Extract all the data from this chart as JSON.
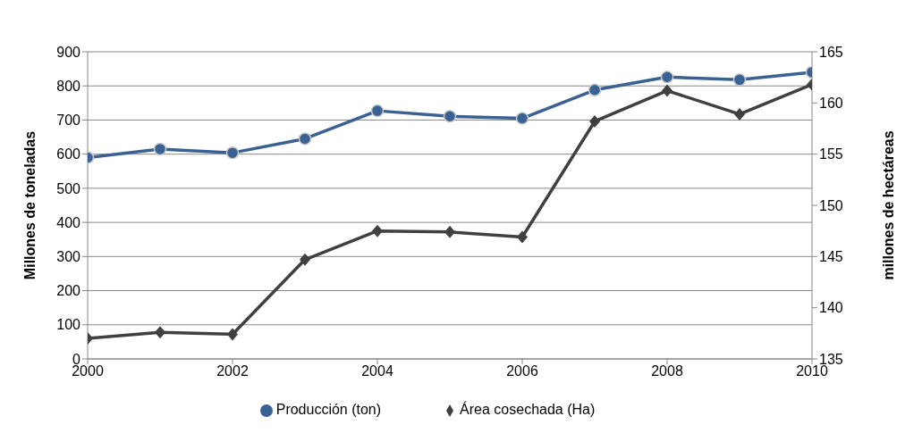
{
  "chart_data": {
    "type": "line",
    "x": [
      2000,
      2001,
      2002,
      2003,
      2004,
      2005,
      2006,
      2007,
      2008,
      2009,
      2010
    ],
    "series": [
      {
        "name": "Producción (ton)",
        "color": "#3a6193",
        "marker": "circle",
        "values": [
          590,
          615,
          604,
          645,
          727,
          711,
          705,
          788,
          826,
          818,
          840
        ]
      },
      {
        "name": "Área cosechada (Ha)",
        "color": "#404040",
        "marker": "diamond",
        "axis": "y2",
        "values": [
          137.0,
          137.6,
          137.4,
          144.7,
          147.5,
          147.4,
          146.9,
          158.2,
          161.2,
          158.9,
          161.8
        ]
      }
    ],
    "xlim": [
      2000,
      2010
    ],
    "xticks": [
      2000,
      2002,
      2004,
      2006,
      2008,
      2010
    ],
    "ylim": [
      0,
      900
    ],
    "yticks": [
      0,
      100,
      200,
      300,
      400,
      500,
      600,
      700,
      800,
      900
    ],
    "y2lim": [
      135,
      165
    ],
    "y2ticks": [
      135,
      140,
      145,
      150,
      155,
      160,
      165
    ],
    "ylabel": "Millones de toneladas",
    "y2label": "millones  de hectáreas",
    "grid": "y",
    "legend": "bottom",
    "line_style": "solid"
  }
}
